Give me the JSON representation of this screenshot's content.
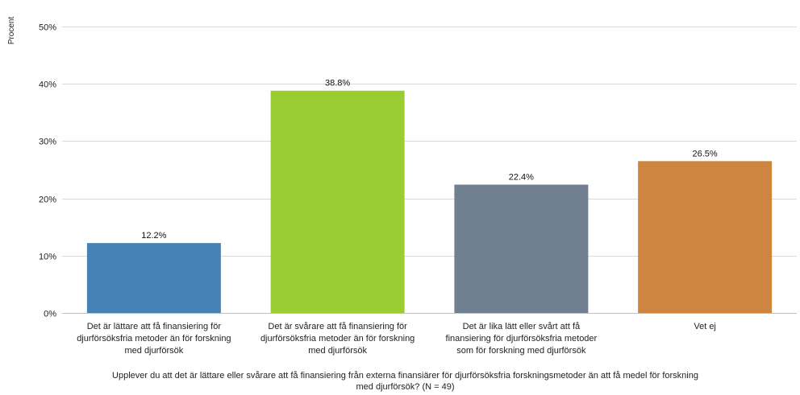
{
  "chart_data": {
    "type": "bar",
    "ylabel": "Procent",
    "xlabel": [
      "Upplever du att det är lättare eller svårare att få finansiering från externa finansiärer för djurförsöksfria forskningsmetoder än att få medel för forskning",
      "med djurförsök?  (N = 49)"
    ],
    "ylim": [
      0,
      50
    ],
    "yticks": [
      0,
      10,
      20,
      30,
      40,
      50
    ],
    "ytick_labels": [
      "0%",
      "10%",
      "20%",
      "30%",
      "40%",
      "50%"
    ],
    "grid": true,
    "legend": "none",
    "categories": [
      [
        "Det är lättare att få finansiering för",
        "djurförsöksfria metoder än för forskning",
        "med djurförsök"
      ],
      [
        "Det är svårare att få finansiering för",
        "djurförsöksfria metoder än för forskning",
        "med djurförsök"
      ],
      [
        "Det är lika lätt eller svårt att få",
        "finansiering för djurförsöksfria metoder",
        "som för forskning med djurförsök"
      ],
      [
        "Vet ej"
      ]
    ],
    "values": [
      12.2,
      38.8,
      22.4,
      26.5
    ],
    "data_labels": [
      "12.2%",
      "38.8%",
      "22.4%",
      "26.5%"
    ],
    "colors": [
      "#4682b4",
      "#9acd32",
      "#708090",
      "#cd853f"
    ]
  }
}
